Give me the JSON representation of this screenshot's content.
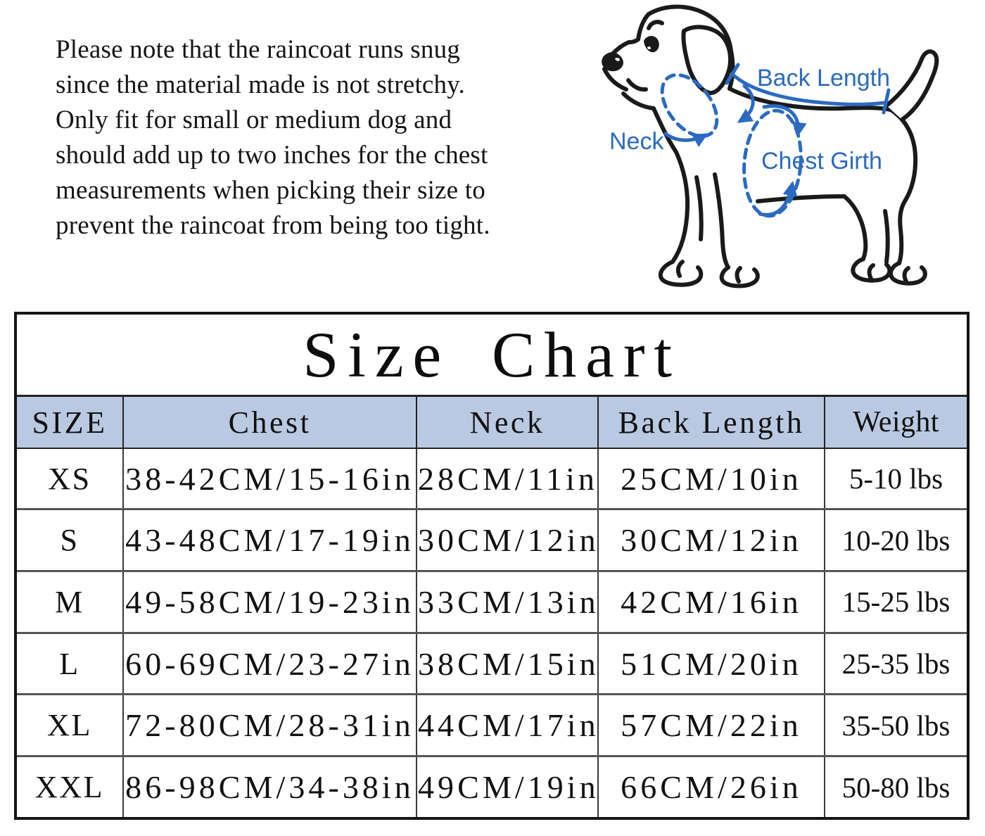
{
  "colors": {
    "annotation_blue": "#2a6ac2",
    "header_bg": "#bac9e2"
  },
  "note": {
    "lines": [
      "Please note that the raincoat runs snug",
      "since the material made is not stretchy.",
      "Only fit for small or medium dog and",
      "should add up to two inches for the chest",
      "measurements when picking their size to",
      "prevent the raincoat from being too tight."
    ]
  },
  "diagram": {
    "labels": {
      "back_length": "Back Length",
      "neck": "Neck",
      "chest_girth": "Chest Girth"
    }
  },
  "size_chart": {
    "title": "Size Chart",
    "headers": [
      "SIZE",
      "Chest",
      "Neck",
      "Back Length",
      "Weight"
    ],
    "rows": [
      {
        "size": "XS",
        "chest": "38-42CM/15-16in",
        "neck": "28CM/11in",
        "back_length": "25CM/10in",
        "weight": "5-10 lbs"
      },
      {
        "size": "S",
        "chest": "43-48CM/17-19in",
        "neck": "30CM/12in",
        "back_length": "30CM/12in",
        "weight": "10-20 lbs"
      },
      {
        "size": "M",
        "chest": "49-58CM/19-23in",
        "neck": "33CM/13in",
        "back_length": "42CM/16in",
        "weight": "15-25 lbs"
      },
      {
        "size": "L",
        "chest": "60-69CM/23-27in",
        "neck": "38CM/15in",
        "back_length": "51CM/20in",
        "weight": "25-35 lbs"
      },
      {
        "size": "XL",
        "chest": "72-80CM/28-31in",
        "neck": "44CM/17in",
        "back_length": "57CM/22in",
        "weight": "35-50 lbs"
      },
      {
        "size": "XXL",
        "chest": "86-98CM/34-38in",
        "neck": "49CM/19in",
        "back_length": "66CM/26in",
        "weight": "50-80 lbs"
      }
    ]
  }
}
